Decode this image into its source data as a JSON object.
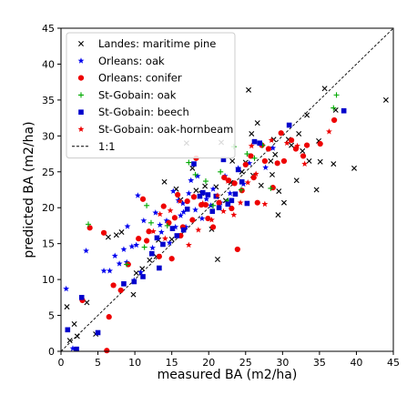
{
  "chart_data": {
    "type": "scatter",
    "title": "",
    "xlabel": "measured BA (m2/ha)",
    "ylabel": "predicted BA (m2/ha)",
    "xlim": [
      0,
      45
    ],
    "ylim": [
      0,
      45
    ],
    "x_ticks": [
      "0",
      "5",
      "10",
      "15",
      "20",
      "25",
      "30",
      "35",
      "40",
      "45"
    ],
    "y_ticks": [
      "0",
      "5",
      "10",
      "15",
      "20",
      "25",
      "30",
      "35",
      "40",
      "45"
    ],
    "grid": false,
    "legend_position": "top-left",
    "reference_line": {
      "label": "1:1",
      "color": "#000000",
      "style": "dashed"
    },
    "series": [
      {
        "name": "Landes: maritime pine",
        "marker": "x",
        "color": "#000000",
        "points": [
          [
            0.8,
            6.2
          ],
          [
            1.2,
            1.5
          ],
          [
            1.8,
            3.8
          ],
          [
            2.2,
            2.1
          ],
          [
            3.5,
            6.8
          ],
          [
            4.7,
            2.4
          ],
          [
            6.4,
            15.9
          ],
          [
            7.5,
            16.2
          ],
          [
            8.2,
            16.6
          ],
          [
            9.8,
            7.9
          ],
          [
            10.2,
            10.9
          ],
          [
            11.0,
            11.5
          ],
          [
            12.0,
            12.7
          ],
          [
            12.9,
            13.2
          ],
          [
            13.2,
            15.5
          ],
          [
            14.0,
            23.6
          ],
          [
            15.0,
            15.6
          ],
          [
            15.6,
            22.6
          ],
          [
            16.2,
            21.1
          ],
          [
            17.0,
            29.0
          ],
          [
            17.8,
            25.5
          ],
          [
            18.3,
            22.4
          ],
          [
            19.0,
            22.0
          ],
          [
            19.5,
            23.0
          ],
          [
            20.4,
            17.0
          ],
          [
            21.0,
            22.9
          ],
          [
            21.2,
            12.8
          ],
          [
            21.7,
            29.1
          ],
          [
            22.3,
            21.0
          ],
          [
            23.0,
            23.5
          ],
          [
            23.2,
            26.5
          ],
          [
            24.5,
            25.0
          ],
          [
            25.0,
            26.3
          ],
          [
            25.4,
            36.4
          ],
          [
            25.8,
            30.3
          ],
          [
            26.0,
            24.5
          ],
          [
            26.6,
            31.8
          ],
          [
            27.1,
            23.1
          ],
          [
            28.4,
            26.5
          ],
          [
            28.6,
            24.6
          ],
          [
            28.8,
            29.5
          ],
          [
            29.0,
            27.4
          ],
          [
            29.4,
            19.0
          ],
          [
            29.5,
            22.3
          ],
          [
            30.2,
            20.7
          ],
          [
            30.8,
            29.5
          ],
          [
            31.2,
            28.7
          ],
          [
            31.9,
            23.8
          ],
          [
            32.2,
            30.3
          ],
          [
            32.7,
            27.9
          ],
          [
            33.3,
            32.9
          ],
          [
            33.6,
            26.5
          ],
          [
            34.6,
            22.5
          ],
          [
            34.9,
            29.3
          ],
          [
            35.1,
            26.4
          ],
          [
            35.7,
            36.6
          ],
          [
            36.9,
            26.1
          ],
          [
            37.2,
            33.6
          ],
          [
            39.7,
            25.5
          ],
          [
            44.0,
            35.0
          ]
        ]
      },
      {
        "name": "Orleans: oak",
        "marker": "star",
        "color": "#0000ee",
        "points": [
          [
            0.7,
            8.7
          ],
          [
            1.6,
            0.4
          ],
          [
            3.4,
            14.0
          ],
          [
            5.8,
            11.2
          ],
          [
            6.6,
            11.2
          ],
          [
            7.3,
            13.3
          ],
          [
            7.9,
            12.2
          ],
          [
            8.5,
            14.2
          ],
          [
            9.0,
            17.4
          ],
          [
            9.6,
            14.6
          ],
          [
            10.2,
            14.8
          ],
          [
            10.8,
            11.0
          ],
          [
            11.2,
            18.2
          ],
          [
            12.4,
            14.4
          ],
          [
            12.8,
            19.3
          ],
          [
            13.4,
            17.6
          ],
          [
            13.6,
            16.6
          ],
          [
            14.3,
            18.2
          ],
          [
            14.7,
            15.1
          ],
          [
            15.2,
            22.3
          ],
          [
            15.5,
            17.3
          ],
          [
            15.9,
            21.0
          ],
          [
            16.2,
            18.9
          ],
          [
            16.5,
            20.6
          ],
          [
            16.6,
            19.4
          ],
          [
            16.9,
            17.3
          ],
          [
            17.3,
            22.0
          ],
          [
            17.6,
            23.8
          ],
          [
            18.2,
            19.7
          ],
          [
            18.5,
            24.4
          ],
          [
            19.1,
            18.5
          ],
          [
            19.7,
            21.2
          ],
          [
            20.3,
            20.3
          ],
          [
            20.6,
            22.6
          ],
          [
            21.6,
            20.7
          ],
          [
            22.2,
            24.4
          ],
          [
            22.9,
            22.0
          ],
          [
            24.0,
            25.5
          ],
          [
            24.7,
            23.3
          ],
          [
            25.5,
            26.2
          ],
          [
            27.7,
            25.6
          ],
          [
            28.7,
            28.3
          ],
          [
            10.4,
            21.7
          ],
          [
            9.9,
            9.9
          ],
          [
            8.9,
            12.4
          ]
        ]
      },
      {
        "name": "Orleans: conifer",
        "marker": "circle",
        "color": "#ee0000",
        "points": [
          [
            2.9,
            7.1
          ],
          [
            3.9,
            17.2
          ],
          [
            5.8,
            16.5
          ],
          [
            6.5,
            4.8
          ],
          [
            7.1,
            9.2
          ],
          [
            8.1,
            8.5
          ],
          [
            9.1,
            12.1
          ],
          [
            10.5,
            15.7
          ],
          [
            11.1,
            21.2
          ],
          [
            11.6,
            15.4
          ],
          [
            11.9,
            16.7
          ],
          [
            13.3,
            13.2
          ],
          [
            13.9,
            20.2
          ],
          [
            14.6,
            17.9
          ],
          [
            15.0,
            12.9
          ],
          [
            15.4,
            18.6
          ],
          [
            15.8,
            21.8
          ],
          [
            16.2,
            16.1
          ],
          [
            16.5,
            17.3
          ],
          [
            17.1,
            20.9
          ],
          [
            17.8,
            18.3
          ],
          [
            18.0,
            21.5
          ],
          [
            18.3,
            26.9
          ],
          [
            19.0,
            20.4
          ],
          [
            19.6,
            20.4
          ],
          [
            19.9,
            18.5
          ],
          [
            20.6,
            17.3
          ],
          [
            21.4,
            20.7
          ],
          [
            22.1,
            24.2
          ],
          [
            22.7,
            23.8
          ],
          [
            23.1,
            19.9
          ],
          [
            23.5,
            23.4
          ],
          [
            23.9,
            14.2
          ],
          [
            24.5,
            22.4
          ],
          [
            25.0,
            26.0
          ],
          [
            25.7,
            27.2
          ],
          [
            26.1,
            24.2
          ],
          [
            26.6,
            20.7
          ],
          [
            27.2,
            28.7
          ],
          [
            27.6,
            26.5
          ],
          [
            28.1,
            28.2
          ],
          [
            28.7,
            22.8
          ],
          [
            29.3,
            26.2
          ],
          [
            29.8,
            30.4
          ],
          [
            30.2,
            26.5
          ],
          [
            31.2,
            29.4
          ],
          [
            31.8,
            28.2
          ],
          [
            32.8,
            27.2
          ],
          [
            33.3,
            28.7
          ],
          [
            35.1,
            28.9
          ],
          [
            37.0,
            32.2
          ],
          [
            6.2,
            0.1
          ]
        ]
      },
      {
        "name": "St-Gobain: oak",
        "marker": "plus",
        "color": "#00aa00",
        "points": [
          [
            3.7,
            17.7
          ],
          [
            8.9,
            12.1
          ],
          [
            11.3,
            14.5
          ],
          [
            11.6,
            20.3
          ],
          [
            12.2,
            17.9
          ],
          [
            14.4,
            17.5
          ],
          [
            17.3,
            26.3
          ],
          [
            18.2,
            24.6
          ],
          [
            19.6,
            23.7
          ],
          [
            20.6,
            20.3
          ],
          [
            21.6,
            25.0
          ],
          [
            22.6,
            21.0
          ],
          [
            23.4,
            28.5
          ],
          [
            24.4,
            22.5
          ],
          [
            25.2,
            27.5
          ],
          [
            26.2,
            26.9
          ],
          [
            27.3,
            28.7
          ],
          [
            28.4,
            22.7
          ],
          [
            36.9,
            33.9
          ],
          [
            37.3,
            35.7
          ]
        ]
      },
      {
        "name": "St-Gobain: beech",
        "marker": "square",
        "color": "#0000cc",
        "points": [
          [
            0.9,
            3.0
          ],
          [
            2.1,
            0.3
          ],
          [
            2.8,
            7.5
          ],
          [
            5.0,
            2.6
          ],
          [
            8.5,
            9.4
          ],
          [
            9.9,
            9.7
          ],
          [
            11.1,
            10.4
          ],
          [
            12.3,
            13.6
          ],
          [
            13.0,
            15.8
          ],
          [
            13.3,
            11.6
          ],
          [
            13.8,
            14.9
          ],
          [
            15.1,
            17.1
          ],
          [
            15.7,
            16.1
          ],
          [
            16.6,
            16.9
          ],
          [
            17.1,
            19.8
          ],
          [
            18.0,
            26.1
          ],
          [
            18.8,
            21.6
          ],
          [
            19.2,
            22.1
          ],
          [
            19.9,
            21.8
          ],
          [
            20.5,
            19.5
          ],
          [
            21.0,
            21.6
          ],
          [
            21.4,
            20.0
          ],
          [
            22.0,
            26.7
          ],
          [
            22.6,
            20.5
          ],
          [
            23.1,
            21.0
          ],
          [
            23.6,
            21.9
          ],
          [
            24.0,
            25.3
          ],
          [
            24.5,
            23.6
          ],
          [
            25.2,
            20.6
          ],
          [
            26.2,
            29.2
          ],
          [
            26.9,
            29.0
          ],
          [
            30.9,
            31.5
          ],
          [
            38.3,
            33.5
          ]
        ]
      },
      {
        "name": "St-Gobain: oak-hornbeam",
        "marker": "star",
        "color": "#ee0000",
        "points": [
          [
            12.5,
            16.7
          ],
          [
            13.4,
            19.1
          ],
          [
            14.1,
            15.7
          ],
          [
            14.8,
            19.6
          ],
          [
            16.1,
            20.9
          ],
          [
            17.3,
            14.8
          ],
          [
            18.0,
            21.6
          ],
          [
            18.6,
            16.9
          ],
          [
            19.2,
            20.6
          ],
          [
            20.4,
            18.3
          ],
          [
            21.2,
            21.7
          ],
          [
            22.0,
            19.5
          ],
          [
            22.6,
            23.7
          ],
          [
            23.4,
            19.0
          ],
          [
            24.3,
            20.7
          ],
          [
            25.3,
            23.5
          ],
          [
            25.8,
            28.6
          ],
          [
            26.4,
            24.7
          ],
          [
            27.6,
            20.5
          ],
          [
            28.5,
            29.4
          ],
          [
            30.6,
            29.0
          ],
          [
            32.0,
            28.6
          ],
          [
            33.0,
            26.1
          ],
          [
            36.3,
            30.6
          ]
        ]
      }
    ]
  }
}
